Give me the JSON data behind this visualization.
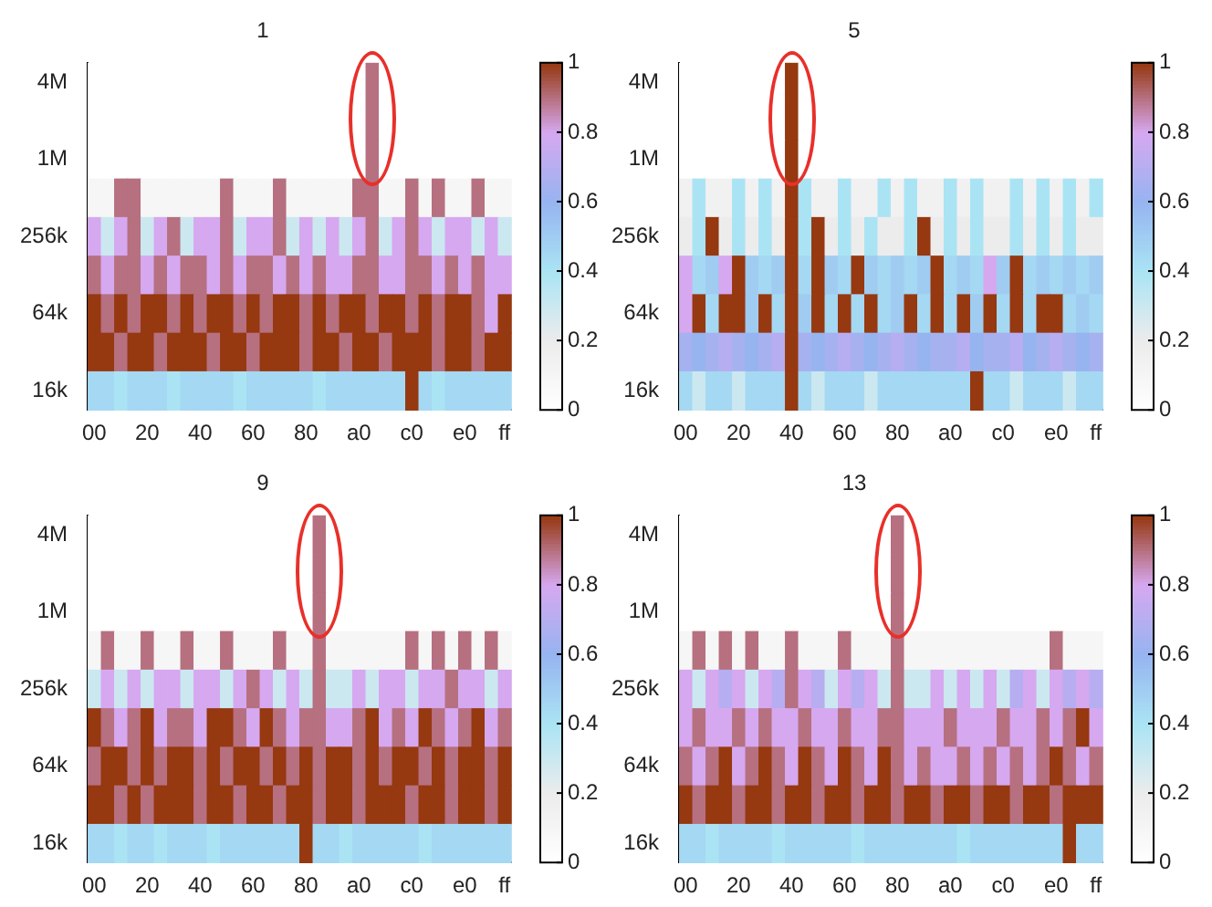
{
  "chart_data": [
    {
      "type": "heatmap",
      "title": "1",
      "categories": [
        "00",
        null,
        null,
        null,
        "20",
        null,
        null,
        null,
        "40",
        null,
        null,
        null,
        "60",
        null,
        null,
        null,
        "80",
        null,
        null,
        null,
        "a0",
        null,
        null,
        null,
        "c0",
        null,
        null,
        null,
        "e0",
        null,
        null,
        "ff"
      ],
      "y_categories": [
        "4M",
        null,
        "1M",
        null,
        "256k",
        null,
        "64k",
        null,
        "16k"
      ],
      "clim": [
        0,
        1
      ],
      "cticks": [
        0,
        0.2,
        0.4,
        0.6,
        0.8,
        1
      ],
      "grid": false,
      "cells": [
        [
          0,
          0,
          0,
          0,
          0,
          0,
          0,
          0,
          0,
          0,
          0,
          0,
          0,
          0,
          0,
          0,
          0,
          0,
          0,
          0,
          0,
          0.9,
          0,
          0,
          0,
          0,
          0,
          0,
          0,
          0,
          0,
          0
        ],
        [
          0,
          0,
          0,
          0,
          0,
          0,
          0,
          0,
          0,
          0,
          0,
          0,
          0,
          0,
          0,
          0,
          0,
          0,
          0,
          0,
          0,
          0.9,
          0,
          0,
          0,
          0,
          0,
          0,
          0,
          0,
          0,
          0
        ],
        [
          0,
          0,
          0,
          0,
          0,
          0,
          0,
          0,
          0,
          0,
          0,
          0,
          0,
          0,
          0,
          0,
          0,
          0,
          0,
          0,
          0,
          0.9,
          0,
          0,
          0,
          0,
          0,
          0,
          0,
          0,
          0,
          0
        ],
        [
          0.1,
          0.1,
          0.9,
          0.9,
          0.1,
          0.1,
          0.1,
          0.1,
          0.1,
          0.1,
          0.9,
          0.1,
          0.1,
          0.1,
          0.9,
          0.1,
          0.1,
          0.1,
          0.1,
          0.1,
          0.9,
          0.9,
          0.1,
          0.1,
          0.9,
          0.1,
          0.9,
          0.1,
          0.1,
          0.9,
          0.1,
          0.1
        ],
        [
          0.8,
          0.3,
          0.8,
          0.9,
          0.3,
          0.8,
          0.9,
          0.3,
          0.8,
          0.8,
          0.9,
          0.3,
          0.8,
          0.8,
          0.9,
          0.3,
          0.8,
          0.3,
          0.8,
          0.3,
          0.8,
          0.9,
          0.3,
          0.8,
          0.9,
          0.8,
          0.3,
          0.8,
          0.8,
          0.3,
          0.8,
          0.3
        ],
        [
          0.9,
          0.8,
          0.9,
          0.9,
          0.8,
          0.9,
          0.8,
          0.9,
          0.9,
          0.8,
          0.9,
          0.8,
          0.9,
          0.9,
          0.8,
          0.9,
          0.8,
          0.9,
          0.8,
          0.8,
          0.9,
          0.9,
          0.8,
          0.8,
          0.9,
          0.9,
          0.8,
          0.9,
          0.8,
          0.9,
          0.8,
          0.8
        ],
        [
          1,
          0.9,
          1,
          0.9,
          1,
          1,
          0.9,
          1,
          0.9,
          1,
          1,
          0.9,
          1,
          0.9,
          1,
          1,
          0.9,
          1,
          0.9,
          1,
          1,
          0.9,
          1,
          1,
          0.9,
          1,
          0.9,
          1,
          1,
          0.9,
          0.8,
          1
        ],
        [
          1,
          1,
          0.9,
          1,
          1,
          0.9,
          1,
          1,
          1,
          0.9,
          1,
          1,
          0.9,
          1,
          1,
          1,
          0.9,
          1,
          1,
          0.9,
          1,
          1,
          0.9,
          1,
          1,
          1,
          0.9,
          1,
          1,
          0.9,
          1,
          1
        ],
        [
          0.45,
          0.45,
          0.4,
          0.45,
          0.45,
          0.45,
          0.4,
          0.45,
          0.45,
          0.45,
          0.45,
          0.4,
          0.45,
          0.45,
          0.45,
          0.45,
          0.45,
          0.4,
          0.45,
          0.45,
          0.45,
          0.45,
          0.45,
          0.45,
          1,
          0.45,
          0.4,
          0.45,
          0.45,
          0.45,
          0.45,
          0.45
        ]
      ]
    },
    {
      "type": "heatmap",
      "title": "5",
      "categories": [
        "00",
        null,
        null,
        null,
        "20",
        null,
        null,
        null,
        "40",
        null,
        null,
        null,
        "60",
        null,
        null,
        null,
        "80",
        null,
        null,
        null,
        "a0",
        null,
        null,
        null,
        "c0",
        null,
        null,
        null,
        "e0",
        null,
        null,
        "ff"
      ],
      "y_categories": [
        "4M",
        null,
        "1M",
        null,
        "256k",
        null,
        "64k",
        null,
        "16k"
      ],
      "clim": [
        0,
        1
      ],
      "cticks": [
        0,
        0.2,
        0.4,
        0.6,
        0.8,
        1
      ],
      "grid": false,
      "cells": [
        [
          0,
          0,
          0,
          0,
          0,
          0,
          0,
          0,
          1,
          0,
          0,
          0,
          0,
          0,
          0,
          0,
          0,
          0,
          0,
          0,
          0,
          0,
          0,
          0,
          0,
          0,
          0,
          0,
          0,
          0,
          0,
          0
        ],
        [
          0,
          0,
          0,
          0,
          0,
          0,
          0,
          0,
          1,
          0,
          0,
          0,
          0,
          0,
          0,
          0,
          0,
          0,
          0,
          0,
          0,
          0,
          0,
          0,
          0,
          0,
          0,
          0,
          0,
          0,
          0,
          0
        ],
        [
          0,
          0,
          0,
          0,
          0,
          0,
          0,
          0,
          1,
          0,
          0,
          0,
          0,
          0,
          0,
          0,
          0,
          0,
          0,
          0,
          0,
          0,
          0,
          0,
          0,
          0,
          0,
          0,
          0,
          0,
          0,
          0
        ],
        [
          0.15,
          0.4,
          0.15,
          0.15,
          0.4,
          0.15,
          0.4,
          0.15,
          1,
          0.4,
          0.15,
          0.15,
          0.4,
          0.15,
          0.15,
          0.4,
          0.15,
          0.4,
          0.15,
          0.15,
          0.4,
          0.15,
          0.4,
          0.15,
          0.15,
          0.4,
          0.15,
          0.4,
          0.15,
          0.4,
          0.15,
          0.4
        ],
        [
          0.2,
          0.4,
          1,
          0.2,
          0.4,
          0.2,
          0.4,
          0.2,
          1,
          0.4,
          1,
          0.2,
          0.4,
          0.2,
          0.4,
          0.2,
          0.2,
          0.4,
          1,
          0.2,
          0.4,
          0.2,
          0.4,
          0.2,
          0.2,
          0.4,
          0.2,
          0.4,
          0.2,
          0.4,
          0.2,
          0.2
        ],
        [
          0.8,
          0.45,
          0.5,
          0.8,
          1,
          0.5,
          0.45,
          0.5,
          1,
          0.45,
          1,
          0.5,
          0.45,
          1,
          0.5,
          0.45,
          0.5,
          0.45,
          0.5,
          1,
          0.45,
          0.5,
          0.45,
          0.8,
          0.5,
          1,
          0.45,
          0.5,
          0.45,
          0.5,
          0.45,
          0.5
        ],
        [
          0.8,
          1,
          0.45,
          1,
          1,
          0.5,
          1,
          0.45,
          1,
          0.5,
          1,
          0.45,
          1,
          0.45,
          1,
          0.45,
          0.5,
          1,
          0.45,
          1,
          0.45,
          1,
          0.5,
          1,
          0.45,
          1,
          0.45,
          1,
          1,
          0.45,
          0.5,
          0.45
        ],
        [
          0.65,
          0.6,
          0.65,
          0.7,
          0.65,
          0.6,
          0.65,
          0.7,
          1,
          0.65,
          0.6,
          0.65,
          0.7,
          0.65,
          0.6,
          0.65,
          0.7,
          0.65,
          0.6,
          0.65,
          0.65,
          0.7,
          0.6,
          0.65,
          0.65,
          0.7,
          0.6,
          0.65,
          0.7,
          0.65,
          0.6,
          0.65
        ],
        [
          0.45,
          0.3,
          0.45,
          0.45,
          0.3,
          0.45,
          0.45,
          0.45,
          1,
          0.45,
          0.3,
          0.45,
          0.45,
          0.45,
          0.3,
          0.45,
          0.45,
          0.45,
          0.45,
          0.45,
          0.45,
          0.45,
          1,
          0.45,
          0.45,
          0.3,
          0.45,
          0.45,
          0.45,
          0.3,
          0.45,
          0.45
        ]
      ]
    },
    {
      "type": "heatmap",
      "title": "9",
      "categories": [
        "00",
        null,
        null,
        null,
        "20",
        null,
        null,
        null,
        "40",
        null,
        null,
        null,
        "60",
        null,
        null,
        null,
        "80",
        null,
        null,
        null,
        "a0",
        null,
        null,
        null,
        "c0",
        null,
        null,
        null,
        "e0",
        null,
        null,
        "ff"
      ],
      "y_categories": [
        "4M",
        null,
        "1M",
        null,
        "256k",
        null,
        "64k",
        null,
        "16k"
      ],
      "clim": [
        0,
        1
      ],
      "cticks": [
        0,
        0.2,
        0.4,
        0.6,
        0.8,
        1
      ],
      "grid": false,
      "cells": [
        [
          0,
          0,
          0,
          0,
          0,
          0,
          0,
          0,
          0,
          0,
          0,
          0,
          0,
          0,
          0,
          0,
          0,
          0.9,
          0,
          0,
          0,
          0,
          0,
          0,
          0,
          0,
          0,
          0,
          0,
          0,
          0,
          0
        ],
        [
          0,
          0,
          0,
          0,
          0,
          0,
          0,
          0,
          0,
          0,
          0,
          0,
          0,
          0,
          0,
          0,
          0,
          0.9,
          0,
          0,
          0,
          0,
          0,
          0,
          0,
          0,
          0,
          0,
          0,
          0,
          0,
          0
        ],
        [
          0,
          0,
          0,
          0,
          0,
          0,
          0,
          0,
          0,
          0,
          0,
          0,
          0,
          0,
          0,
          0,
          0,
          0.9,
          0,
          0,
          0,
          0,
          0,
          0,
          0,
          0,
          0,
          0,
          0,
          0,
          0,
          0
        ],
        [
          0.1,
          0.9,
          0.1,
          0.1,
          0.9,
          0.1,
          0.1,
          0.9,
          0.1,
          0.1,
          0.9,
          0.1,
          0.1,
          0.1,
          0.9,
          0.1,
          0.1,
          0.9,
          0.1,
          0.1,
          0.1,
          0.1,
          0.1,
          0.1,
          0.9,
          0.1,
          0.9,
          0.1,
          0.9,
          0.1,
          0.9,
          0.1
        ],
        [
          0.3,
          0.8,
          0.3,
          0.8,
          0.3,
          0.8,
          0.8,
          0.3,
          0.8,
          0.8,
          0.3,
          0.8,
          0.9,
          0.8,
          0.3,
          0.8,
          0.3,
          0.9,
          0.3,
          0.3,
          0.8,
          0.3,
          0.8,
          0.8,
          0.3,
          0.8,
          0.8,
          0.9,
          0.8,
          0.8,
          0.3,
          0.8
        ],
        [
          1,
          0.9,
          0.8,
          0.9,
          1,
          0.8,
          0.9,
          0.9,
          0.8,
          1,
          1,
          0.9,
          0.8,
          1,
          0.9,
          0.8,
          0.9,
          0.9,
          0.8,
          0.8,
          0.9,
          1,
          0.8,
          0.9,
          0.8,
          1,
          0.9,
          0.8,
          0.9,
          1,
          0.8,
          0.9
        ],
        [
          0.9,
          1,
          1,
          0.9,
          1,
          0.9,
          1,
          1,
          0.9,
          1,
          0.9,
          1,
          1,
          0.9,
          1,
          0.9,
          1,
          0.9,
          1,
          1,
          0.9,
          1,
          0.9,
          1,
          1,
          0.9,
          1,
          0.9,
          1,
          1,
          0.9,
          1
        ],
        [
          1,
          1,
          0.9,
          1,
          0.9,
          1,
          1,
          1,
          0.9,
          1,
          1,
          0.9,
          1,
          1,
          0.9,
          1,
          1,
          0.9,
          1,
          1,
          0.9,
          1,
          1,
          1,
          0.9,
          1,
          1,
          0.9,
          1,
          1,
          0.9,
          1
        ],
        [
          0.45,
          0.45,
          0.4,
          0.45,
          0.45,
          0.4,
          0.45,
          0.45,
          0.45,
          0.4,
          0.45,
          0.45,
          0.45,
          0.45,
          0.45,
          0.45,
          1,
          0.45,
          0.45,
          0.4,
          0.45,
          0.45,
          0.45,
          0.45,
          0.45,
          0.4,
          0.45,
          0.45,
          0.45,
          0.45,
          0.45,
          0.45
        ]
      ]
    },
    {
      "type": "heatmap",
      "title": "13",
      "categories": [
        "00",
        null,
        null,
        null,
        "20",
        null,
        null,
        null,
        "40",
        null,
        null,
        null,
        "60",
        null,
        null,
        null,
        "80",
        null,
        null,
        null,
        "a0",
        null,
        null,
        null,
        "c0",
        null,
        null,
        null,
        "e0",
        null,
        null,
        "ff"
      ],
      "y_categories": [
        "4M",
        null,
        "1M",
        null,
        "256k",
        null,
        "64k",
        null,
        "16k"
      ],
      "clim": [
        0,
        1
      ],
      "cticks": [
        0,
        0.2,
        0.4,
        0.6,
        0.8,
        1
      ],
      "grid": false,
      "cells": [
        [
          0,
          0,
          0,
          0,
          0,
          0,
          0,
          0,
          0,
          0,
          0,
          0,
          0,
          0,
          0,
          0,
          0.9,
          0,
          0,
          0,
          0,
          0,
          0,
          0,
          0,
          0,
          0,
          0,
          0,
          0,
          0,
          0
        ],
        [
          0,
          0,
          0,
          0,
          0,
          0,
          0,
          0,
          0,
          0,
          0,
          0,
          0,
          0,
          0,
          0,
          0.9,
          0,
          0,
          0,
          0,
          0,
          0,
          0,
          0,
          0,
          0,
          0,
          0,
          0,
          0,
          0
        ],
        [
          0,
          0,
          0,
          0,
          0,
          0,
          0,
          0,
          0,
          0,
          0,
          0,
          0,
          0,
          0,
          0,
          0.9,
          0,
          0,
          0,
          0,
          0,
          0,
          0,
          0,
          0,
          0,
          0,
          0,
          0,
          0,
          0
        ],
        [
          0.1,
          0.9,
          0.1,
          0.9,
          0.1,
          0.9,
          0.1,
          0.1,
          0.9,
          0.1,
          0.1,
          0.1,
          0.9,
          0.1,
          0.1,
          0.1,
          0.9,
          0.1,
          0.1,
          0.1,
          0.1,
          0.1,
          0.1,
          0.1,
          0.1,
          0.1,
          0.1,
          0.1,
          0.9,
          0.1,
          0.1,
          0.1
        ],
        [
          0.8,
          0.3,
          0.8,
          0.7,
          0.8,
          0.3,
          0.8,
          0.7,
          0.9,
          0.8,
          0.7,
          0.3,
          0.8,
          0.7,
          0.8,
          0.3,
          0.9,
          0.3,
          0.3,
          0.8,
          0.3,
          0.8,
          0.3,
          0.8,
          0.3,
          0.7,
          0.8,
          0.3,
          0.8,
          0.7,
          0.8,
          0.7
        ],
        [
          0.8,
          0.9,
          0.8,
          0.8,
          0.9,
          0.8,
          0.9,
          0.8,
          0.8,
          0.9,
          0.8,
          0.8,
          0.9,
          0.8,
          0.8,
          0.9,
          0.9,
          0.8,
          0.8,
          0.8,
          0.9,
          0.8,
          0.8,
          0.8,
          0.9,
          0.8,
          0.8,
          0.9,
          0.8,
          0.9,
          1,
          0.8
        ],
        [
          0.9,
          0.8,
          0.9,
          1,
          0.8,
          0.9,
          1,
          0.9,
          0.8,
          1,
          0.9,
          0.8,
          1,
          0.9,
          0.8,
          1,
          0.9,
          0.8,
          0.9,
          0.8,
          0.8,
          0.9,
          0.8,
          0.9,
          0.8,
          0.9,
          0.8,
          0.9,
          1,
          0.9,
          0.8,
          0.9
        ],
        [
          1,
          0.9,
          1,
          1,
          0.9,
          1,
          1,
          0.9,
          1,
          1,
          0.9,
          1,
          1,
          0.9,
          1,
          1,
          0.9,
          1,
          1,
          0.9,
          1,
          1,
          0.9,
          1,
          1,
          0.9,
          1,
          1,
          0.9,
          1,
          1,
          1
        ],
        [
          0.45,
          0.45,
          0.4,
          0.45,
          0.45,
          0.45,
          0.45,
          0.4,
          0.45,
          0.45,
          0.45,
          0.45,
          0.45,
          0.4,
          0.45,
          0.45,
          0.45,
          0.45,
          0.45,
          0.45,
          0.45,
          0.4,
          0.45,
          0.45,
          0.45,
          0.45,
          0.45,
          0.45,
          0.45,
          1,
          0.45,
          0.45
        ]
      ]
    }
  ]
}
